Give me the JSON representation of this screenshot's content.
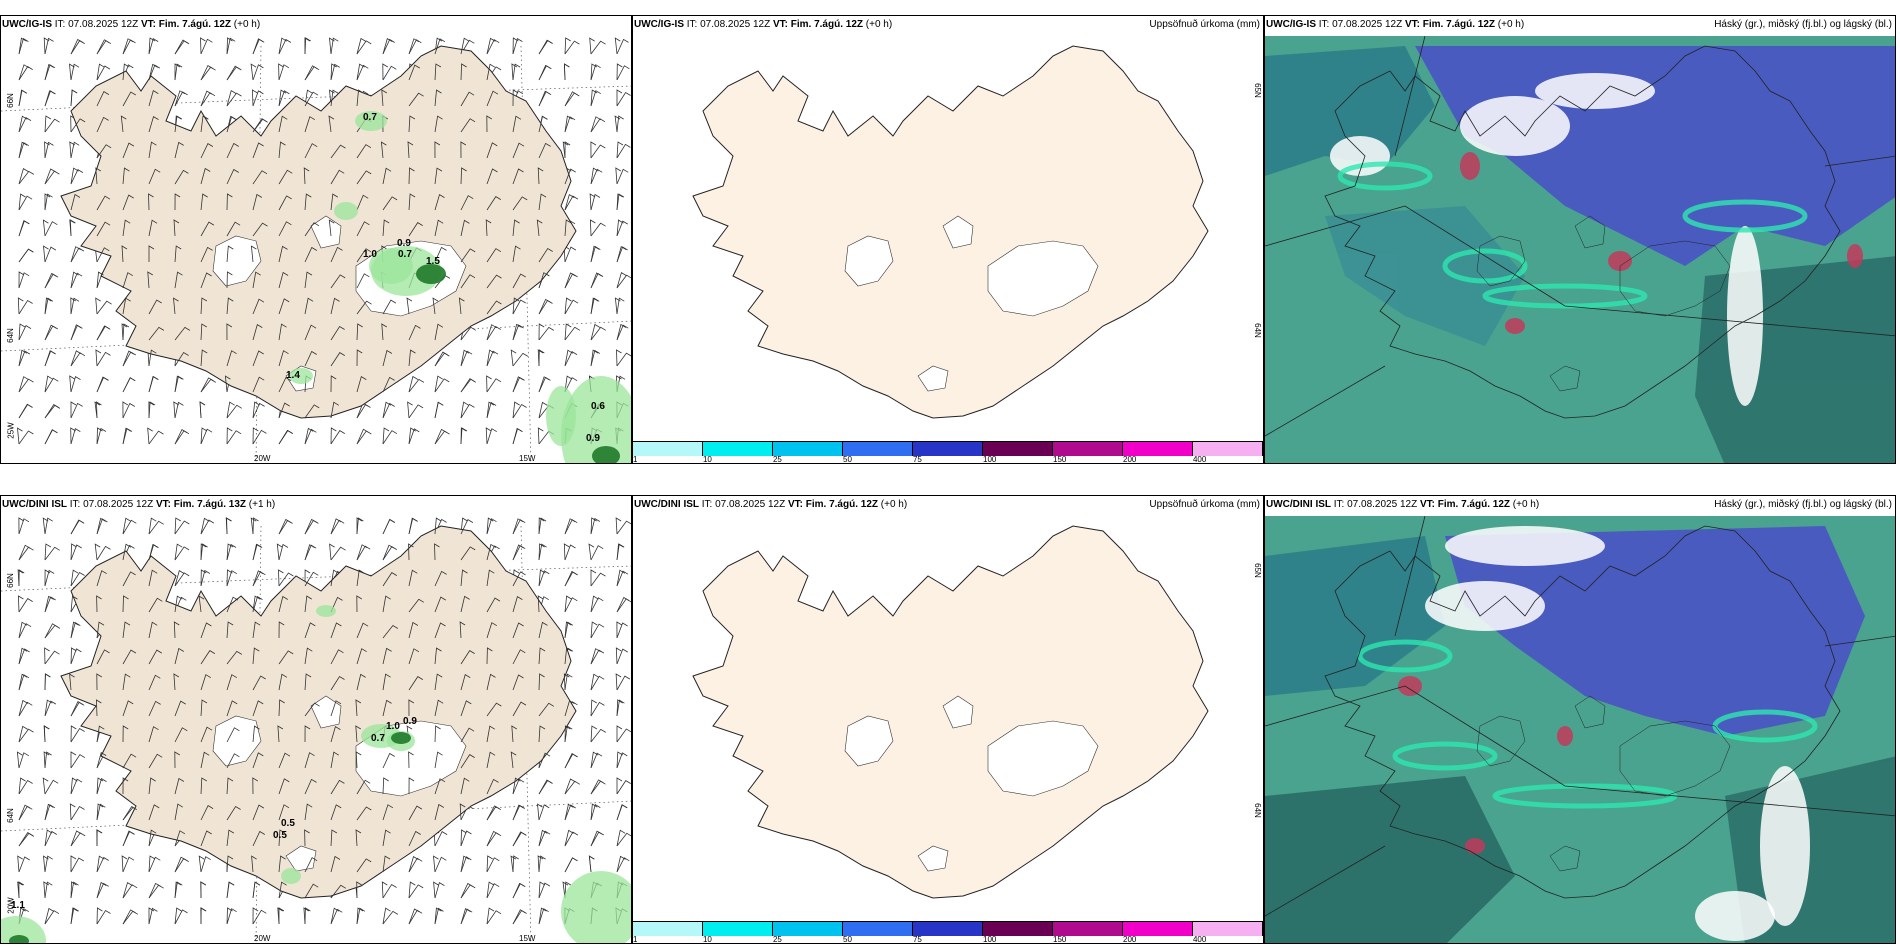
{
  "rows": [
    {
      "wind": {
        "model": "UWC/IG-IS",
        "it_label": "IT:",
        "it": "07.08.2025 12Z",
        "vt_label": "VT:",
        "vt": "Fim. 7.ágú. 12Z",
        "lead": "(+0 h)",
        "values": [
          "0.7",
          "0.9",
          "1.0",
          "0.7",
          "1.5",
          "1.4",
          "0.6",
          "0.9"
        ],
        "lat_labels": [
          "66N",
          "64N"
        ],
        "lon_labels": [
          "25W",
          "20W",
          "15W"
        ]
      },
      "precip": {
        "model": "UWC/IG-IS",
        "it_label": "IT:",
        "it": "07.08.2025 12Z",
        "vt_label": "VT:",
        "vt": "Fim. 7.ágú. 12Z",
        "lead": "(+0 h)",
        "right_label": "Uppsöfnuð úrkoma (mm)",
        "edge_labels": [
          "65N",
          "64N"
        ]
      },
      "cloud": {
        "model": "UWC/IG-IS",
        "it_label": "IT:",
        "it": "07.08.2025 12Z",
        "vt_label": "VT:",
        "vt": "Fim. 7.ágú. 12Z",
        "lead": "(+0 h)",
        "right_label": "Háský (gr.), miðský (fj.bl.) og lágský (bl.)"
      }
    },
    {
      "wind": {
        "model": "UWC/DINI ISL",
        "it_label": "IT:",
        "it": "07.08.2025 12Z",
        "vt_label": "VT:",
        "vt": "Fim. 7.ágú. 13Z",
        "lead": "(+1 h)",
        "values": [
          "0.7",
          "1.0",
          "0.9",
          "0.5",
          "0.5",
          "1.1"
        ],
        "lat_labels": [
          "66N",
          "64N"
        ],
        "lon_labels": [
          "20W",
          "20W",
          "15W"
        ]
      },
      "precip": {
        "model": "UWC/DINI ISL",
        "it_label": "IT:",
        "it": "07.08.2025 12Z",
        "vt_label": "VT:",
        "vt": "Fim. 7.ágú. 12Z",
        "lead": "(+0 h)",
        "right_label": "Uppsöfnuð úrkoma (mm)",
        "edge_labels": [
          "65N",
          "64N"
        ]
      },
      "cloud": {
        "model": "UWC/DINI ISL",
        "it_label": "IT:",
        "it": "07.08.2025 12Z",
        "vt_label": "VT:",
        "vt": "Fim. 7.ágú. 12Z",
        "lead": "(+0 h)",
        "right_label": "Háský (gr.), miðský (fj.bl.) og lágský (bl.)"
      }
    }
  ],
  "colorbar": {
    "labels": [
      "1",
      "10",
      "25",
      "50",
      "75",
      "100",
      "150",
      "200",
      "400"
    ],
    "colors": [
      "#b4f8fa",
      "#00eef0",
      "#00c2ef",
      "#2f6ef0",
      "#2635c5",
      "#6a0054",
      "#b00a8f",
      "#f000c8",
      "#f6b0f2"
    ]
  },
  "colors": {
    "land": "#f0e4d4",
    "land_precip": "#fdf1e4",
    "glacier": "#ffffff",
    "sea_cloud": "#4aa38e",
    "cloud_high": "#2ee6b0",
    "cloud_mid": "#4a4fc8",
    "cloud_low": "#c23a5a"
  }
}
